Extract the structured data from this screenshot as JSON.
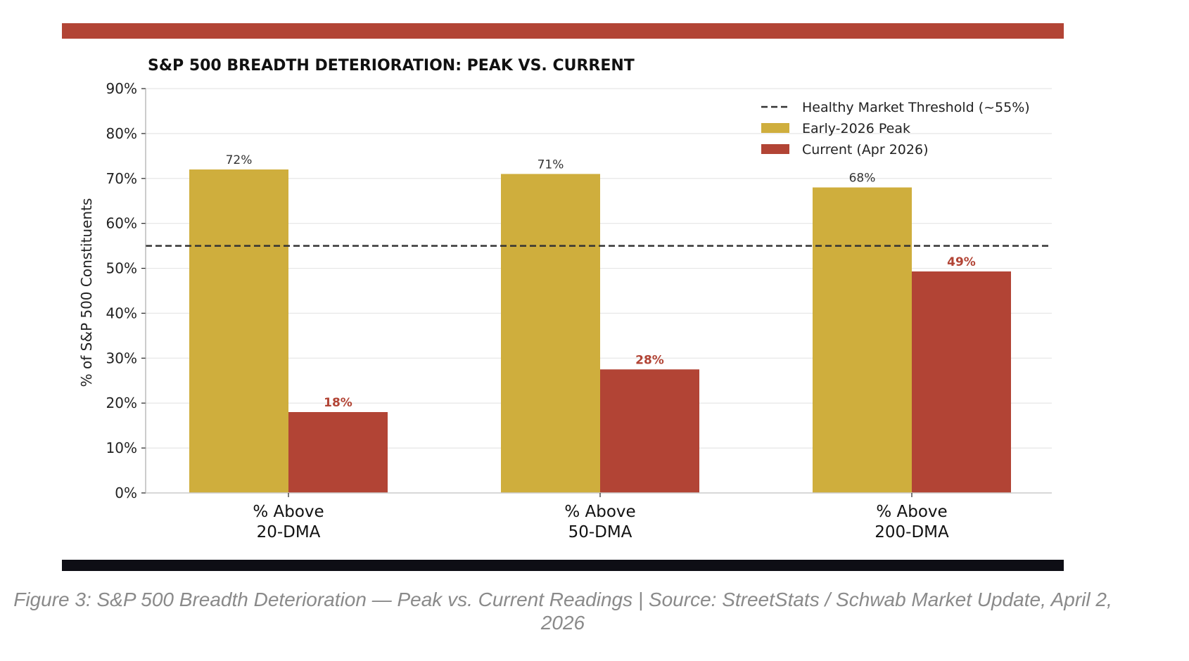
{
  "colors": {
    "peak": "#CFAE3D",
    "current": "#B24435",
    "topbar": "#B24435",
    "bottombar": "#0E0E15",
    "threshold": "#333333"
  },
  "caption": "Figure 3: S&P 500 Breadth Deterioration — Peak vs. Current Readings | Source: StreetStats / Schwab Market Update, April 2, 2026",
  "chart_data": {
    "type": "bar",
    "title": "S&P 500 BREADTH DETERIORATION: PEAK VS. CURRENT",
    "xlabel": "",
    "ylabel": "% of S&P 500 Constituents",
    "ylim": [
      0,
      90
    ],
    "yticks": [
      "0%",
      "10%",
      "20%",
      "30%",
      "40%",
      "50%",
      "60%",
      "70%",
      "80%",
      "90%"
    ],
    "grid": true,
    "legend_position": "top-right",
    "categories": [
      [
        "% Above",
        "20-DMA"
      ],
      [
        "% Above",
        "50-DMA"
      ],
      [
        "% Above",
        "200-DMA"
      ]
    ],
    "series": [
      {
        "name": "Early-2026 Peak",
        "values": [
          72,
          71,
          68
        ],
        "labels": [
          "72%",
          "71%",
          "68%"
        ]
      },
      {
        "name": "Current (Apr 2026)",
        "values": [
          18,
          27.5,
          49.3
        ],
        "labels": [
          "18%",
          "28%",
          "49%"
        ]
      }
    ],
    "threshold": {
      "name": "Healthy Market Threshold (~55%)",
      "value": 55
    }
  }
}
